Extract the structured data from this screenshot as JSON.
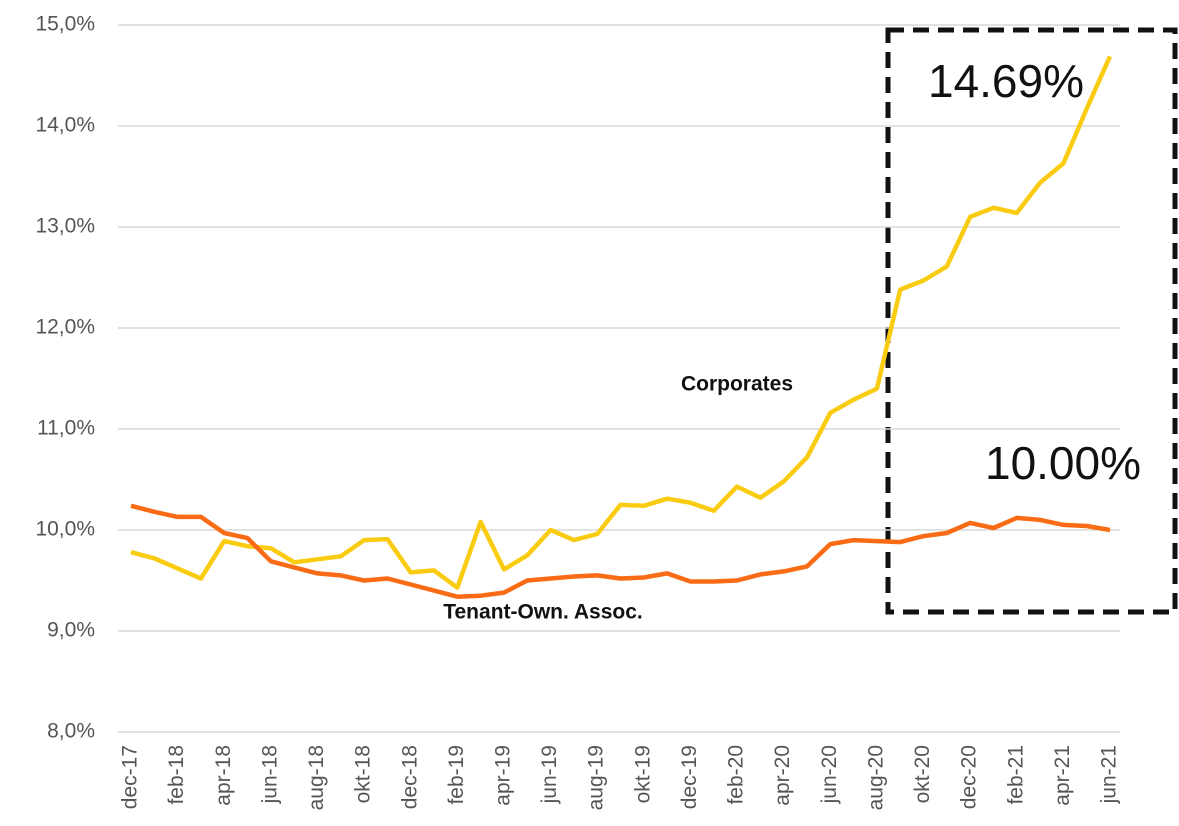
{
  "chart_data": {
    "type": "line",
    "categories": [
      "dec-17",
      null,
      "feb-18",
      null,
      "apr-18",
      null,
      "jun-18",
      null,
      "aug-18",
      null,
      "okt-18",
      null,
      "dec-18",
      null,
      "feb-19",
      null,
      "apr-19",
      null,
      "jun-19",
      null,
      "aug-19",
      null,
      "okt-19",
      null,
      "dec-19",
      null,
      "feb-20",
      null,
      "apr-20",
      null,
      "jun-20",
      null,
      "aug-20",
      null,
      "okt-20",
      null,
      "dec-20",
      null,
      "feb-21",
      null,
      "apr-21",
      null,
      "jun-21"
    ],
    "series": [
      {
        "name": "Corporates",
        "color": "#f9cc12",
        "values": [
          9.78,
          9.72,
          9.62,
          9.52,
          9.89,
          9.84,
          9.82,
          9.68,
          9.71,
          9.74,
          9.9,
          9.91,
          9.58,
          9.6,
          9.43,
          10.08,
          9.61,
          9.75,
          10.0,
          9.9,
          9.96,
          10.25,
          10.24,
          10.31,
          10.27,
          10.19,
          10.43,
          10.32,
          10.48,
          10.72,
          11.16,
          11.29,
          11.4,
          12.38,
          12.47,
          12.61,
          13.1,
          13.19,
          13.14,
          13.44,
          13.63,
          14.17,
          14.69
        ]
      },
      {
        "name": "Tenant-Own. Assoc.",
        "color": "#f96b14",
        "values": [
          10.24,
          10.18,
          10.13,
          10.13,
          9.97,
          9.92,
          9.69,
          9.63,
          9.57,
          9.55,
          9.5,
          9.52,
          9.46,
          9.4,
          9.34,
          9.35,
          9.38,
          9.5,
          9.52,
          9.54,
          9.55,
          9.52,
          9.53,
          9.57,
          9.49,
          9.49,
          9.5,
          9.56,
          9.59,
          9.64,
          9.86,
          9.9,
          9.89,
          9.88,
          9.94,
          9.97,
          10.07,
          10.02,
          10.12,
          10.1,
          10.05,
          10.04,
          10.0
        ]
      }
    ],
    "annotations": [
      "14.69%",
      "10.00%"
    ],
    "ylim": [
      8,
      15
    ],
    "yticks": [
      {
        "value": 8,
        "label": "8,0%"
      },
      {
        "value": 9,
        "label": "9,0%"
      },
      {
        "value": 10,
        "label": "10,0%"
      },
      {
        "value": 11,
        "label": "11,0%"
      },
      {
        "value": 12,
        "label": "12,0%"
      },
      {
        "value": 13,
        "label": "13,0%"
      },
      {
        "value": 14,
        "label": "14,0%"
      },
      {
        "value": 15,
        "label": "15,0%"
      }
    ],
    "grid": true
  }
}
